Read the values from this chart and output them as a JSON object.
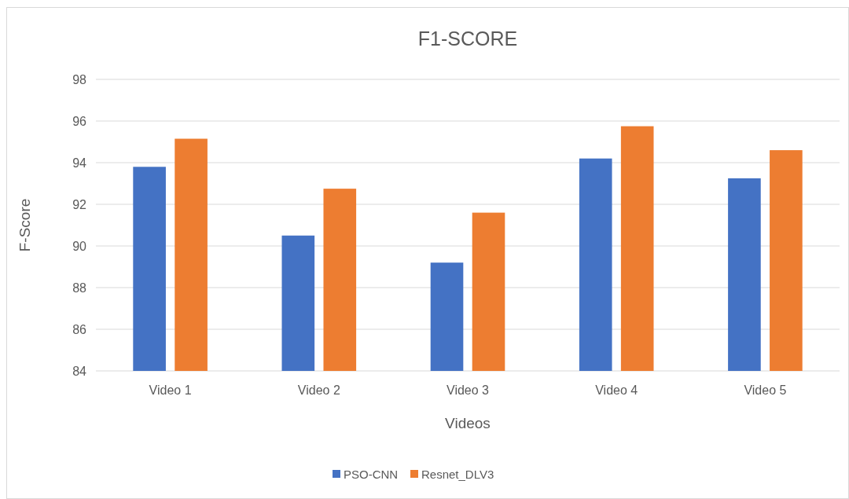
{
  "chart_data": {
    "type": "bar",
    "title": "F1-SCORE",
    "xlabel": "Videos",
    "ylabel": "F-Score",
    "categories": [
      "Video 1",
      "Video 2",
      "Video 3",
      "Video 4",
      "Video 5"
    ],
    "series": [
      {
        "name": "PSO-CNN",
        "color": "#4472c4",
        "values": [
          93.8,
          90.5,
          89.2,
          94.2,
          93.25
        ]
      },
      {
        "name": "Resnet_DLV3",
        "color": "#ed7d31",
        "values": [
          95.15,
          92.75,
          91.6,
          95.75,
          94.6
        ]
      }
    ],
    "ylim": [
      84,
      98
    ],
    "yticks": [
      84,
      86,
      88,
      90,
      92,
      94,
      96,
      98
    ],
    "grid": "y",
    "legend": "bottom"
  }
}
